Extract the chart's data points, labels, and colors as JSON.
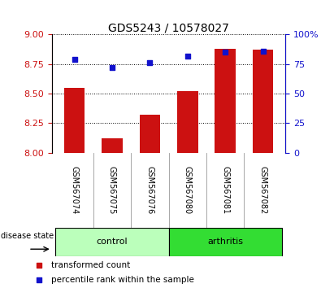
{
  "title": "GDS5243 / 10578027",
  "samples": [
    "GSM567074",
    "GSM567075",
    "GSM567076",
    "GSM567080",
    "GSM567081",
    "GSM567082"
  ],
  "transformed_counts": [
    8.55,
    8.12,
    8.32,
    8.52,
    8.88,
    8.87
  ],
  "percentile_ranks": [
    79,
    72,
    76,
    82,
    85,
    86
  ],
  "ylim_left": [
    8.0,
    9.0
  ],
  "ylim_right": [
    0,
    100
  ],
  "yticks_left": [
    8.0,
    8.25,
    8.5,
    8.75,
    9.0
  ],
  "yticks_right": [
    0,
    25,
    50,
    75,
    100
  ],
  "ytick_labels_right": [
    "0",
    "25",
    "50",
    "75",
    "100%"
  ],
  "bar_color": "#cc1111",
  "dot_color": "#1111cc",
  "bar_bottom": 8.0,
  "groups": [
    {
      "label": "control",
      "indices": [
        0,
        1,
        2
      ],
      "color": "#bbffbb"
    },
    {
      "label": "arthritis",
      "indices": [
        3,
        4,
        5
      ],
      "color": "#33dd33"
    }
  ],
  "disease_state_label": "disease state",
  "legend_items": [
    {
      "label": "transformed count",
      "color": "#cc1111"
    },
    {
      "label": "percentile rank within the sample",
      "color": "#1111cc"
    }
  ],
  "bg_color": "#ffffff",
  "tick_area_color": "#cccccc",
  "title_fontsize": 10,
  "label_fontsize": 8,
  "sample_fontsize": 7
}
